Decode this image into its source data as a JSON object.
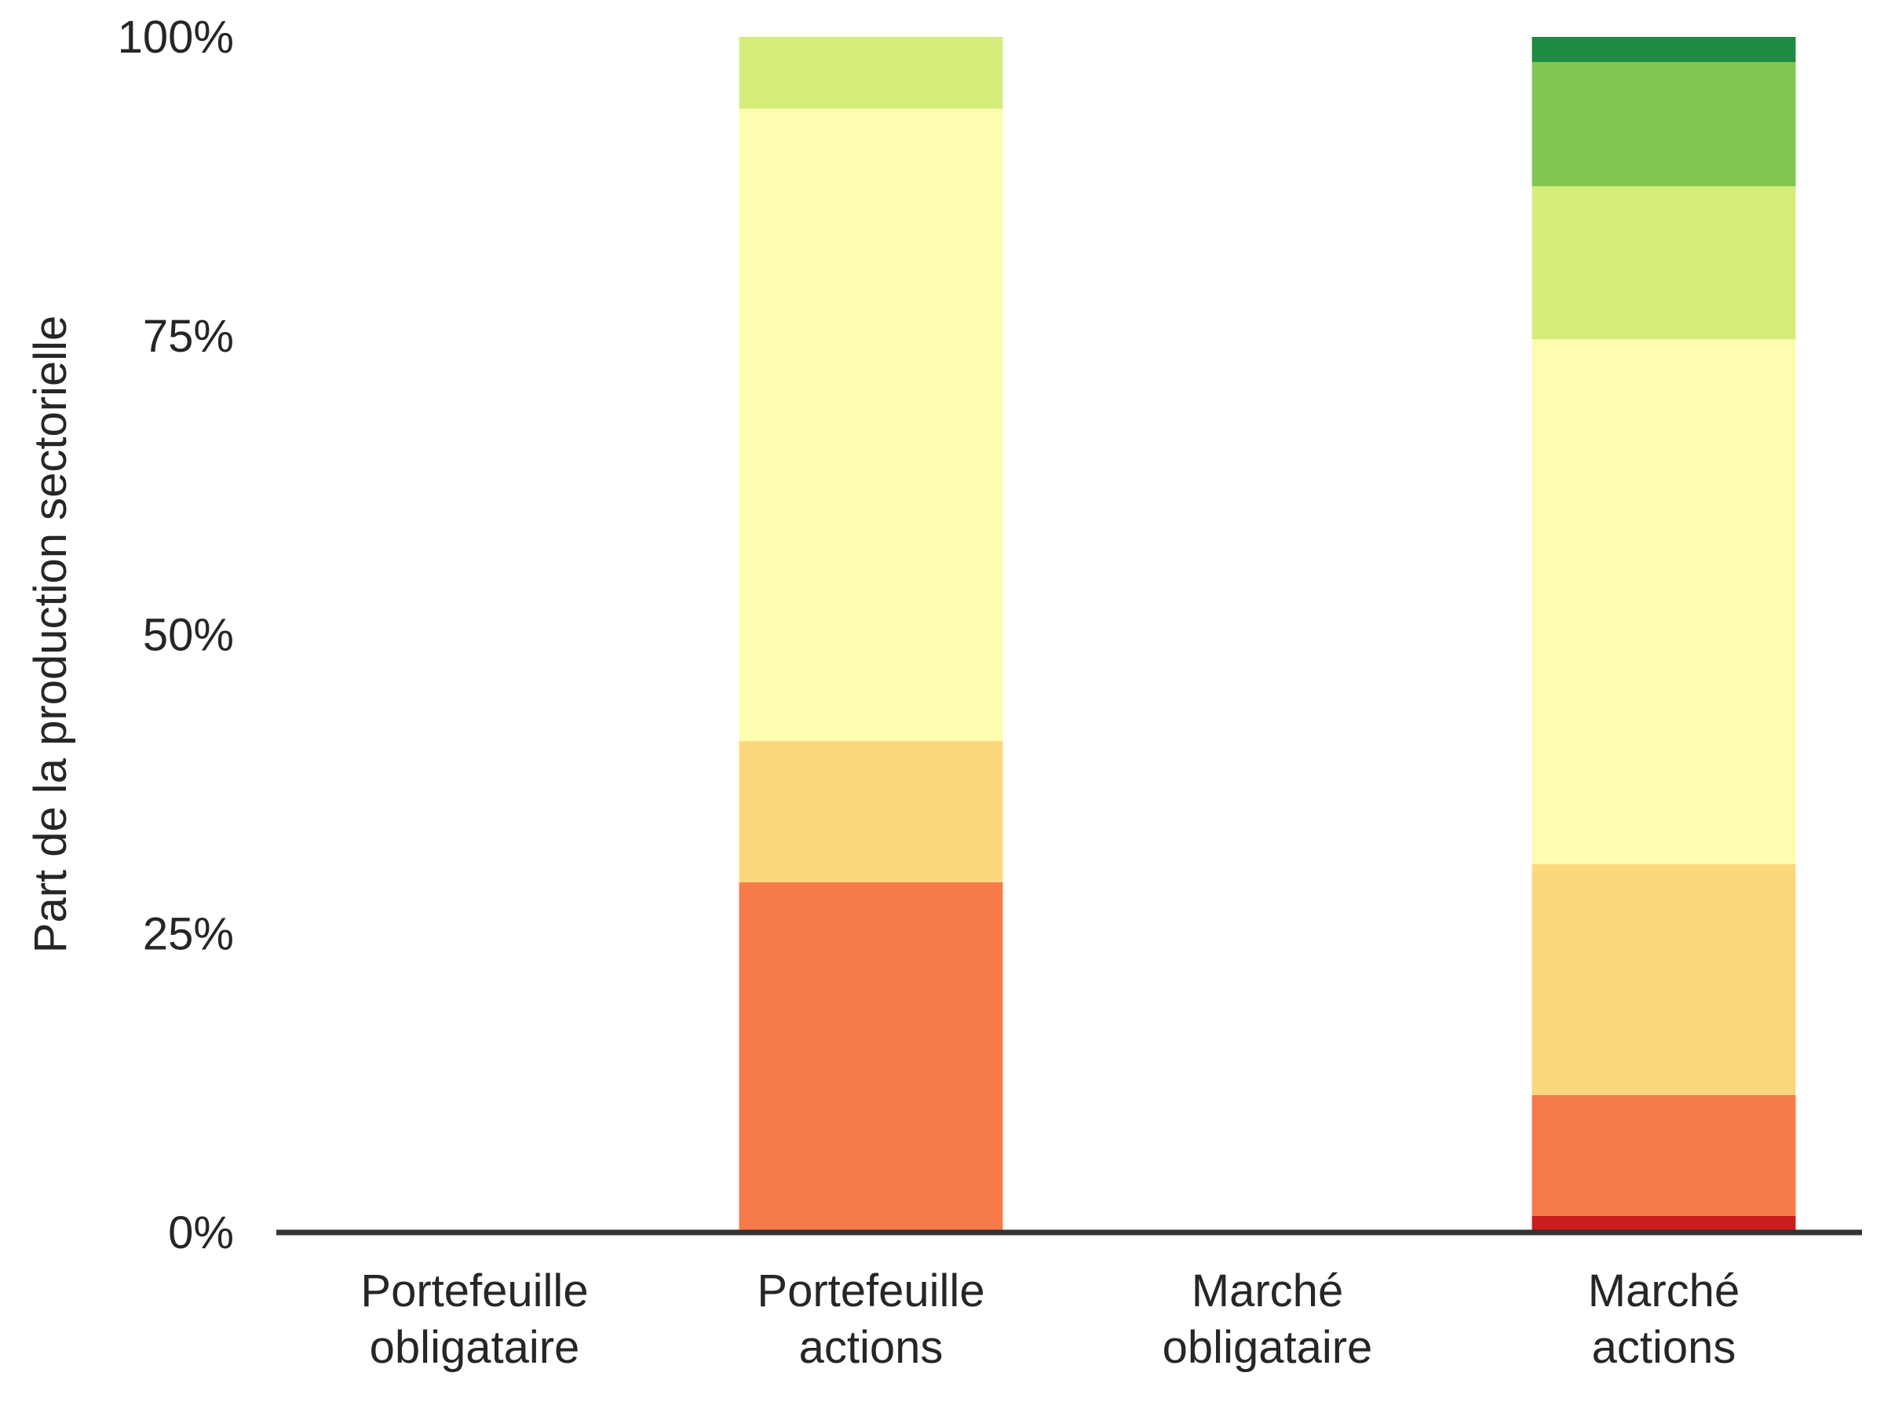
{
  "chart_data": {
    "type": "bar",
    "stacked": true,
    "title": "",
    "xlabel": "",
    "ylabel": "Part de la production sectorielle",
    "ylim": [
      0,
      100
    ],
    "y_ticks": [
      "0%",
      "25%",
      "50%",
      "75%",
      "100%"
    ],
    "y_tick_values": [
      0,
      25,
      50,
      75,
      100
    ],
    "grid": false,
    "legend": "none",
    "categories": [
      [
        "Portefeuille",
        "obligataire"
      ],
      [
        "Portefeuille",
        "actions"
      ],
      [
        "Marché",
        "obligataire"
      ],
      [
        "Marché",
        "actions"
      ]
    ],
    "series": [
      {
        "color": "#c81e1e",
        "values": [
          0,
          0,
          0,
          1.4
        ]
      },
      {
        "color": "#f77b4a",
        "values": [
          0,
          29.3,
          0,
          10.1
        ]
      },
      {
        "color": "#fad87b",
        "values": [
          0,
          11.8,
          0,
          19.3
        ]
      },
      {
        "color": "#fdfdb0",
        "values": [
          0,
          52.9,
          0,
          43.9
        ]
      },
      {
        "color": "#d5ed7b",
        "values": [
          0,
          6.0,
          0,
          12.8
        ]
      },
      {
        "color": "#80c651",
        "values": [
          0,
          0,
          0,
          10.4
        ]
      },
      {
        "color": "#1d8b41",
        "values": [
          0,
          0,
          0,
          2.1
        ]
      }
    ]
  }
}
